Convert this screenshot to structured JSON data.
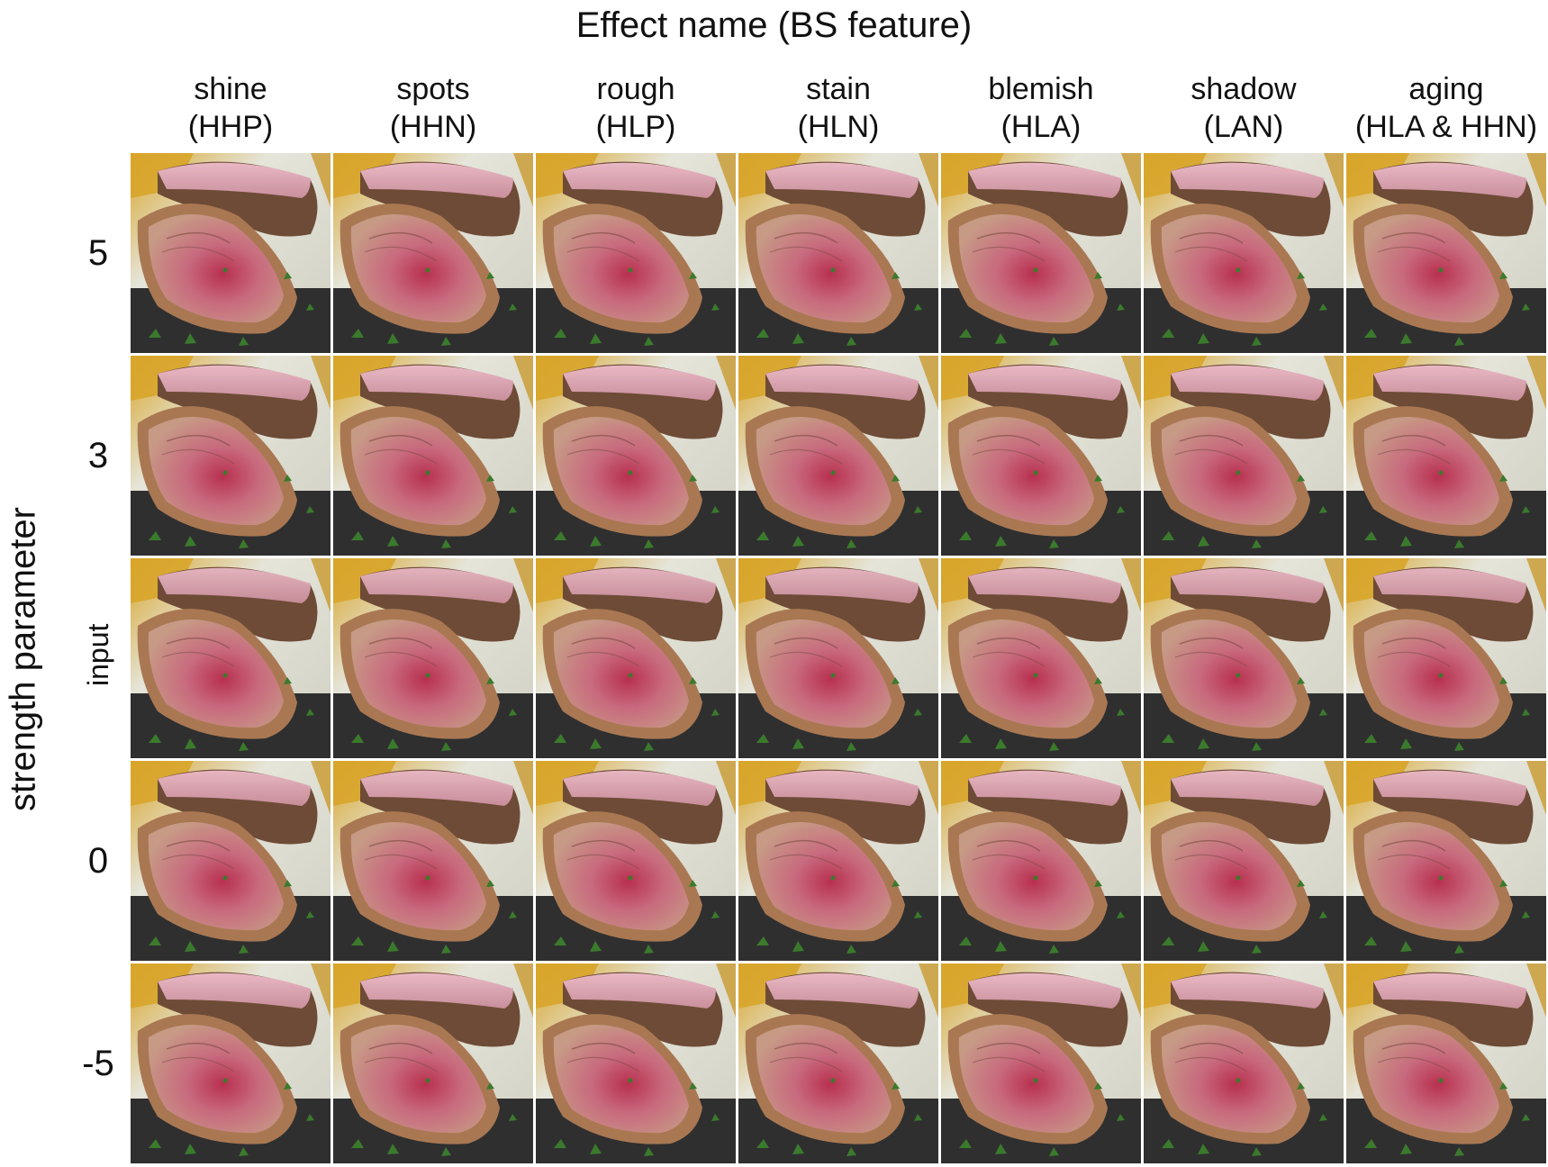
{
  "figure": {
    "title": "Effect name (BS feature)",
    "y_axis_title": "strength parameter",
    "columns": [
      {
        "name": "shine",
        "feature": "(HHP)"
      },
      {
        "name": "spots",
        "feature": "(HHN)"
      },
      {
        "name": "rough",
        "feature": "(HLP)"
      },
      {
        "name": "stain",
        "feature": "(HLN)"
      },
      {
        "name": "blemish",
        "feature": "(HLA)"
      },
      {
        "name": "shadow",
        "feature": "(LAN)"
      },
      {
        "name": "aging",
        "feature": "(HLA & HHN)"
      }
    ],
    "rows": [
      {
        "label": "5",
        "rotated": false
      },
      {
        "label": "3",
        "rotated": false
      },
      {
        "label": "input",
        "rotated": true
      },
      {
        "label": "0",
        "rotated": false
      },
      {
        "label": "-5",
        "rotated": false
      }
    ],
    "image_subject": "sliced-meat-photo",
    "colors": {
      "meat_pink": "#c86a7e",
      "meat_crust": "#a97852",
      "board_light": "#e5e5da",
      "board_dark": "#2f2f30",
      "herb_green": "#3b7a2c",
      "potato_yellow": "#d8a52a"
    }
  }
}
